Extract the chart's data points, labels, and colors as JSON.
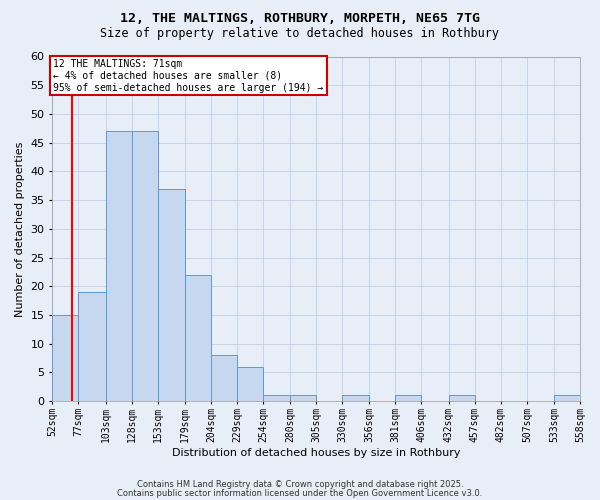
{
  "title_line1": "12, THE MALTINGS, ROTHBURY, MORPETH, NE65 7TG",
  "title_line2": "Size of property relative to detached houses in Rothbury",
  "xlabel": "Distribution of detached houses by size in Rothbury",
  "ylabel": "Number of detached properties",
  "bin_labels": [
    "52sqm",
    "77sqm",
    "103sqm",
    "128sqm",
    "153sqm",
    "179sqm",
    "204sqm",
    "229sqm",
    "254sqm",
    "280sqm",
    "305sqm",
    "330sqm",
    "356sqm",
    "381sqm",
    "406sqm",
    "432sqm",
    "457sqm",
    "482sqm",
    "507sqm",
    "533sqm",
    "558sqm"
  ],
  "bin_edges": [
    52,
    77,
    103,
    128,
    153,
    179,
    204,
    229,
    254,
    280,
    305,
    330,
    356,
    381,
    406,
    432,
    457,
    482,
    507,
    533,
    558
  ],
  "bar_heights": [
    15,
    19,
    47,
    47,
    37,
    22,
    8,
    6,
    1,
    1,
    0,
    1,
    0,
    1,
    0,
    1,
    0,
    0,
    0,
    1
  ],
  "bar_color": "#c5d8f0",
  "bar_edge_color": "#5a9bd5",
  "ylim": [
    0,
    60
  ],
  "yticks": [
    0,
    5,
    10,
    15,
    20,
    25,
    30,
    35,
    40,
    45,
    50,
    55,
    60
  ],
  "annotation_text": "12 THE MALTINGS: 71sqm\n← 4% of detached houses are smaller (8)\n95% of semi-detached houses are larger (194) →",
  "annotation_box_color": "#ffffff",
  "annotation_box_edge": "#cc0000",
  "vline_x": 71,
  "background_color": "#e8eef8",
  "grid_color": "#b8cce4",
  "footer_line1": "Contains HM Land Registry data © Crown copyright and database right 2025.",
  "footer_line2": "Contains public sector information licensed under the Open Government Licence v3.0."
}
